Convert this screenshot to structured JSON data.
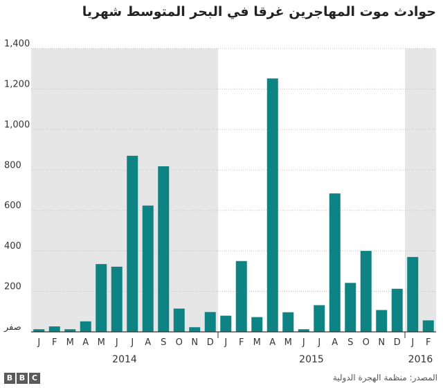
{
  "title": "حوادث موت المهاجرين غرقا في البحر المتوسط شهريا",
  "source": "المصدر: منظمة الهجرة الدولية",
  "logo": [
    "B",
    "B",
    "C"
  ],
  "colors": {
    "bar": "#0e8383",
    "shade": "#e6e6e6",
    "grid": "#ffffff",
    "axis": "#333333"
  },
  "chart_data": {
    "type": "bar",
    "title": "حوادث موت المهاجرين غرقا في البحر المتوسط شهريا",
    "xlabel": "",
    "ylabel": "",
    "ylim": [
      0,
      1400
    ],
    "yticks": [
      0,
      200,
      400,
      600,
      800,
      1000,
      1200,
      1400
    ],
    "ytick_labels": [
      "صفر",
      "200",
      "400",
      "600",
      "800",
      "1,000",
      "1,200",
      "1,400"
    ],
    "categories": [
      "J",
      "F",
      "M",
      "A",
      "M",
      "J",
      "J",
      "A",
      "S",
      "O",
      "N",
      "D",
      "J",
      "F",
      "M",
      "A",
      "M",
      "J",
      "J",
      "A",
      "S",
      "O",
      "N",
      "D",
      "J",
      "F"
    ],
    "values": [
      13,
      27,
      13,
      52,
      335,
      322,
      870,
      624,
      818,
      115,
      23,
      98,
      80,
      350,
      73,
      1252,
      97,
      13,
      132,
      684,
      242,
      400,
      108,
      213,
      370,
      57
    ],
    "years": [
      {
        "label": "2014",
        "start": 0,
        "end": 11,
        "shaded": true
      },
      {
        "label": "2015",
        "start": 12,
        "end": 23,
        "shaded": false
      },
      {
        "label": "2016",
        "start": 24,
        "end": 25,
        "shaded": true
      }
    ],
    "grid": true
  }
}
